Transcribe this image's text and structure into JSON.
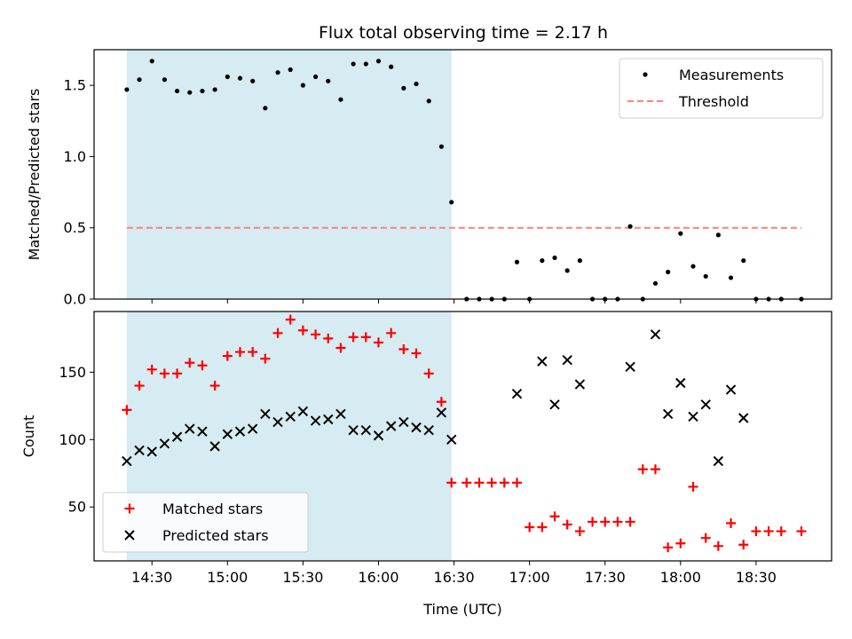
{
  "title": "Flux total observing time = 2.17 h",
  "colors": {
    "measurement": "#000000",
    "threshold": "#ff7f7f",
    "matched": "#ff0000",
    "predicted": "#000000",
    "shade": "#add8e6"
  },
  "chart_data": [
    {
      "type": "scatter",
      "ylabel": "Matched/Predicted stars",
      "ylim": [
        0,
        1.75
      ],
      "yticks": [
        0.0,
        0.5,
        1.0,
        1.5
      ],
      "ytick_labels": [
        "0.0",
        "0.5",
        "1.0",
        "1.5"
      ],
      "xlim": [
        "14:07",
        "19:00"
      ],
      "shaded_interval": [
        "14:20",
        "16:29"
      ],
      "threshold": 0.5,
      "threshold_range": [
        "14:20",
        "18:48"
      ],
      "legend": {
        "placement": "top-right",
        "entries": [
          "Measurements",
          "Threshold"
        ]
      },
      "series": [
        {
          "name": "Measurements",
          "x": [
            "14:20",
            "14:25",
            "14:30",
            "14:35",
            "14:40",
            "14:45",
            "14:50",
            "14:55",
            "15:00",
            "15:05",
            "15:10",
            "15:15",
            "15:20",
            "15:25",
            "15:30",
            "15:35",
            "15:40",
            "15:45",
            "15:50",
            "15:55",
            "16:00",
            "16:05",
            "16:10",
            "16:15",
            "16:20",
            "16:25",
            "16:29",
            "16:35",
            "16:40",
            "16:45",
            "16:50",
            "16:55",
            "17:00",
            "17:05",
            "17:10",
            "17:15",
            "17:20",
            "17:25",
            "17:30",
            "17:35",
            "17:40",
            "17:45",
            "17:50",
            "17:55",
            "18:00",
            "18:05",
            "18:10",
            "18:15",
            "18:20",
            "18:25",
            "18:30",
            "18:35",
            "18:40",
            "18:48"
          ],
          "y": [
            1.47,
            1.54,
            1.67,
            1.54,
            1.46,
            1.45,
            1.46,
            1.47,
            1.56,
            1.55,
            1.53,
            1.34,
            1.59,
            1.61,
            1.5,
            1.56,
            1.53,
            1.4,
            1.65,
            1.65,
            1.67,
            1.63,
            1.48,
            1.51,
            1.39,
            1.07,
            0.68,
            0.0,
            0.0,
            0.0,
            0.0,
            0.26,
            0.0,
            0.27,
            0.29,
            0.2,
            0.27,
            0.0,
            0.0,
            0.0,
            0.51,
            0.0,
            0.11,
            0.19,
            0.46,
            0.23,
            0.16,
            0.45,
            0.15,
            0.27,
            0.0,
            0.0,
            0.0,
            0.0
          ]
        }
      ]
    },
    {
      "type": "scatter",
      "xlabel": "Time (UTC)",
      "ylabel": "Count",
      "ylim": [
        10,
        195
      ],
      "yticks": [
        50,
        100,
        150
      ],
      "ytick_labels": [
        "50",
        "100",
        "150"
      ],
      "xlim": [
        "14:07",
        "19:00"
      ],
      "xticks": [
        "14:30",
        "15:00",
        "15:30",
        "16:00",
        "16:30",
        "17:00",
        "17:30",
        "18:00",
        "18:30"
      ],
      "shaded_interval": [
        "14:20",
        "16:29"
      ],
      "legend": {
        "placement": "bottom-left",
        "entries": [
          "Matched stars",
          "Predicted stars"
        ]
      },
      "series": [
        {
          "name": "Matched stars",
          "marker": "plus",
          "x": [
            "14:20",
            "14:25",
            "14:30",
            "14:35",
            "14:40",
            "14:45",
            "14:50",
            "14:55",
            "15:00",
            "15:05",
            "15:10",
            "15:15",
            "15:20",
            "15:25",
            "15:30",
            "15:35",
            "15:40",
            "15:45",
            "15:50",
            "15:55",
            "16:00",
            "16:05",
            "16:10",
            "16:15",
            "16:20",
            "16:25",
            "16:29",
            "16:35",
            "16:40",
            "16:45",
            "16:50",
            "16:55",
            "17:00",
            "17:05",
            "17:10",
            "17:15",
            "17:20",
            "17:25",
            "17:30",
            "17:35",
            "17:40",
            "17:45",
            "17:50",
            "17:55",
            "18:00",
            "18:05",
            "18:10",
            "18:15",
            "18:20",
            "18:25",
            "18:30",
            "18:35",
            "18:40",
            "18:48"
          ],
          "y": [
            122,
            140,
            152,
            149,
            149,
            157,
            155,
            140,
            162,
            165,
            165,
            160,
            179,
            189,
            181,
            178,
            175,
            168,
            176,
            176,
            172,
            179,
            167,
            164,
            149,
            128,
            68,
            68,
            68,
            68,
            68,
            68,
            35,
            35,
            43,
            37,
            32,
            39,
            39,
            39,
            39,
            78,
            78,
            20,
            23,
            65,
            27,
            21,
            38,
            22,
            32,
            32,
            32,
            32
          ]
        },
        {
          "name": "Predicted stars",
          "marker": "x",
          "x": [
            "14:20",
            "14:25",
            "14:30",
            "14:35",
            "14:40",
            "14:45",
            "14:50",
            "14:55",
            "15:00",
            "15:05",
            "15:10",
            "15:15",
            "15:20",
            "15:25",
            "15:30",
            "15:35",
            "15:40",
            "15:45",
            "15:50",
            "15:55",
            "16:00",
            "16:05",
            "16:10",
            "16:15",
            "16:20",
            "16:25",
            "16:29",
            "16:55",
            "17:05",
            "17:10",
            "17:15",
            "17:20",
            "17:40",
            "17:50",
            "17:55",
            "18:00",
            "18:05",
            "18:10",
            "18:15",
            "18:20",
            "18:25"
          ],
          "y": [
            84,
            92,
            91,
            97,
            102,
            108,
            106,
            95,
            104,
            106,
            108,
            119,
            113,
            117,
            121,
            114,
            115,
            119,
            107,
            107,
            103,
            110,
            113,
            109,
            107,
            120,
            100,
            134,
            158,
            126,
            159,
            141,
            154,
            178,
            119,
            142,
            117,
            126,
            84,
            137,
            116
          ]
        }
      ]
    }
  ]
}
